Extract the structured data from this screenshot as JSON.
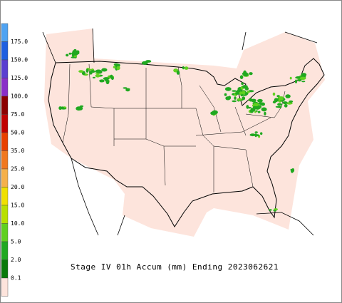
{
  "title": "Stage IV 01h Accum (mm) Ending 2023062621",
  "legend": {
    "labels": [
      "175.0",
      "150.0",
      "125.0",
      "100.0",
      "75.0",
      "50.0",
      "35.0",
      "25.0",
      "20.0",
      "15.0",
      "10.0",
      "5.0",
      "2.0",
      "0.1"
    ],
    "colors": [
      "#4fa3f2",
      "#1f5fe0",
      "#5a3fd0",
      "#8a2fc8",
      "#8b0000",
      "#c00000",
      "#e84000",
      "#f07820",
      "#f5b04a",
      "#f0e000",
      "#b8e000",
      "#60d020",
      "#20a820",
      "#0a7a0a",
      "#fde4dc"
    ]
  }
}
